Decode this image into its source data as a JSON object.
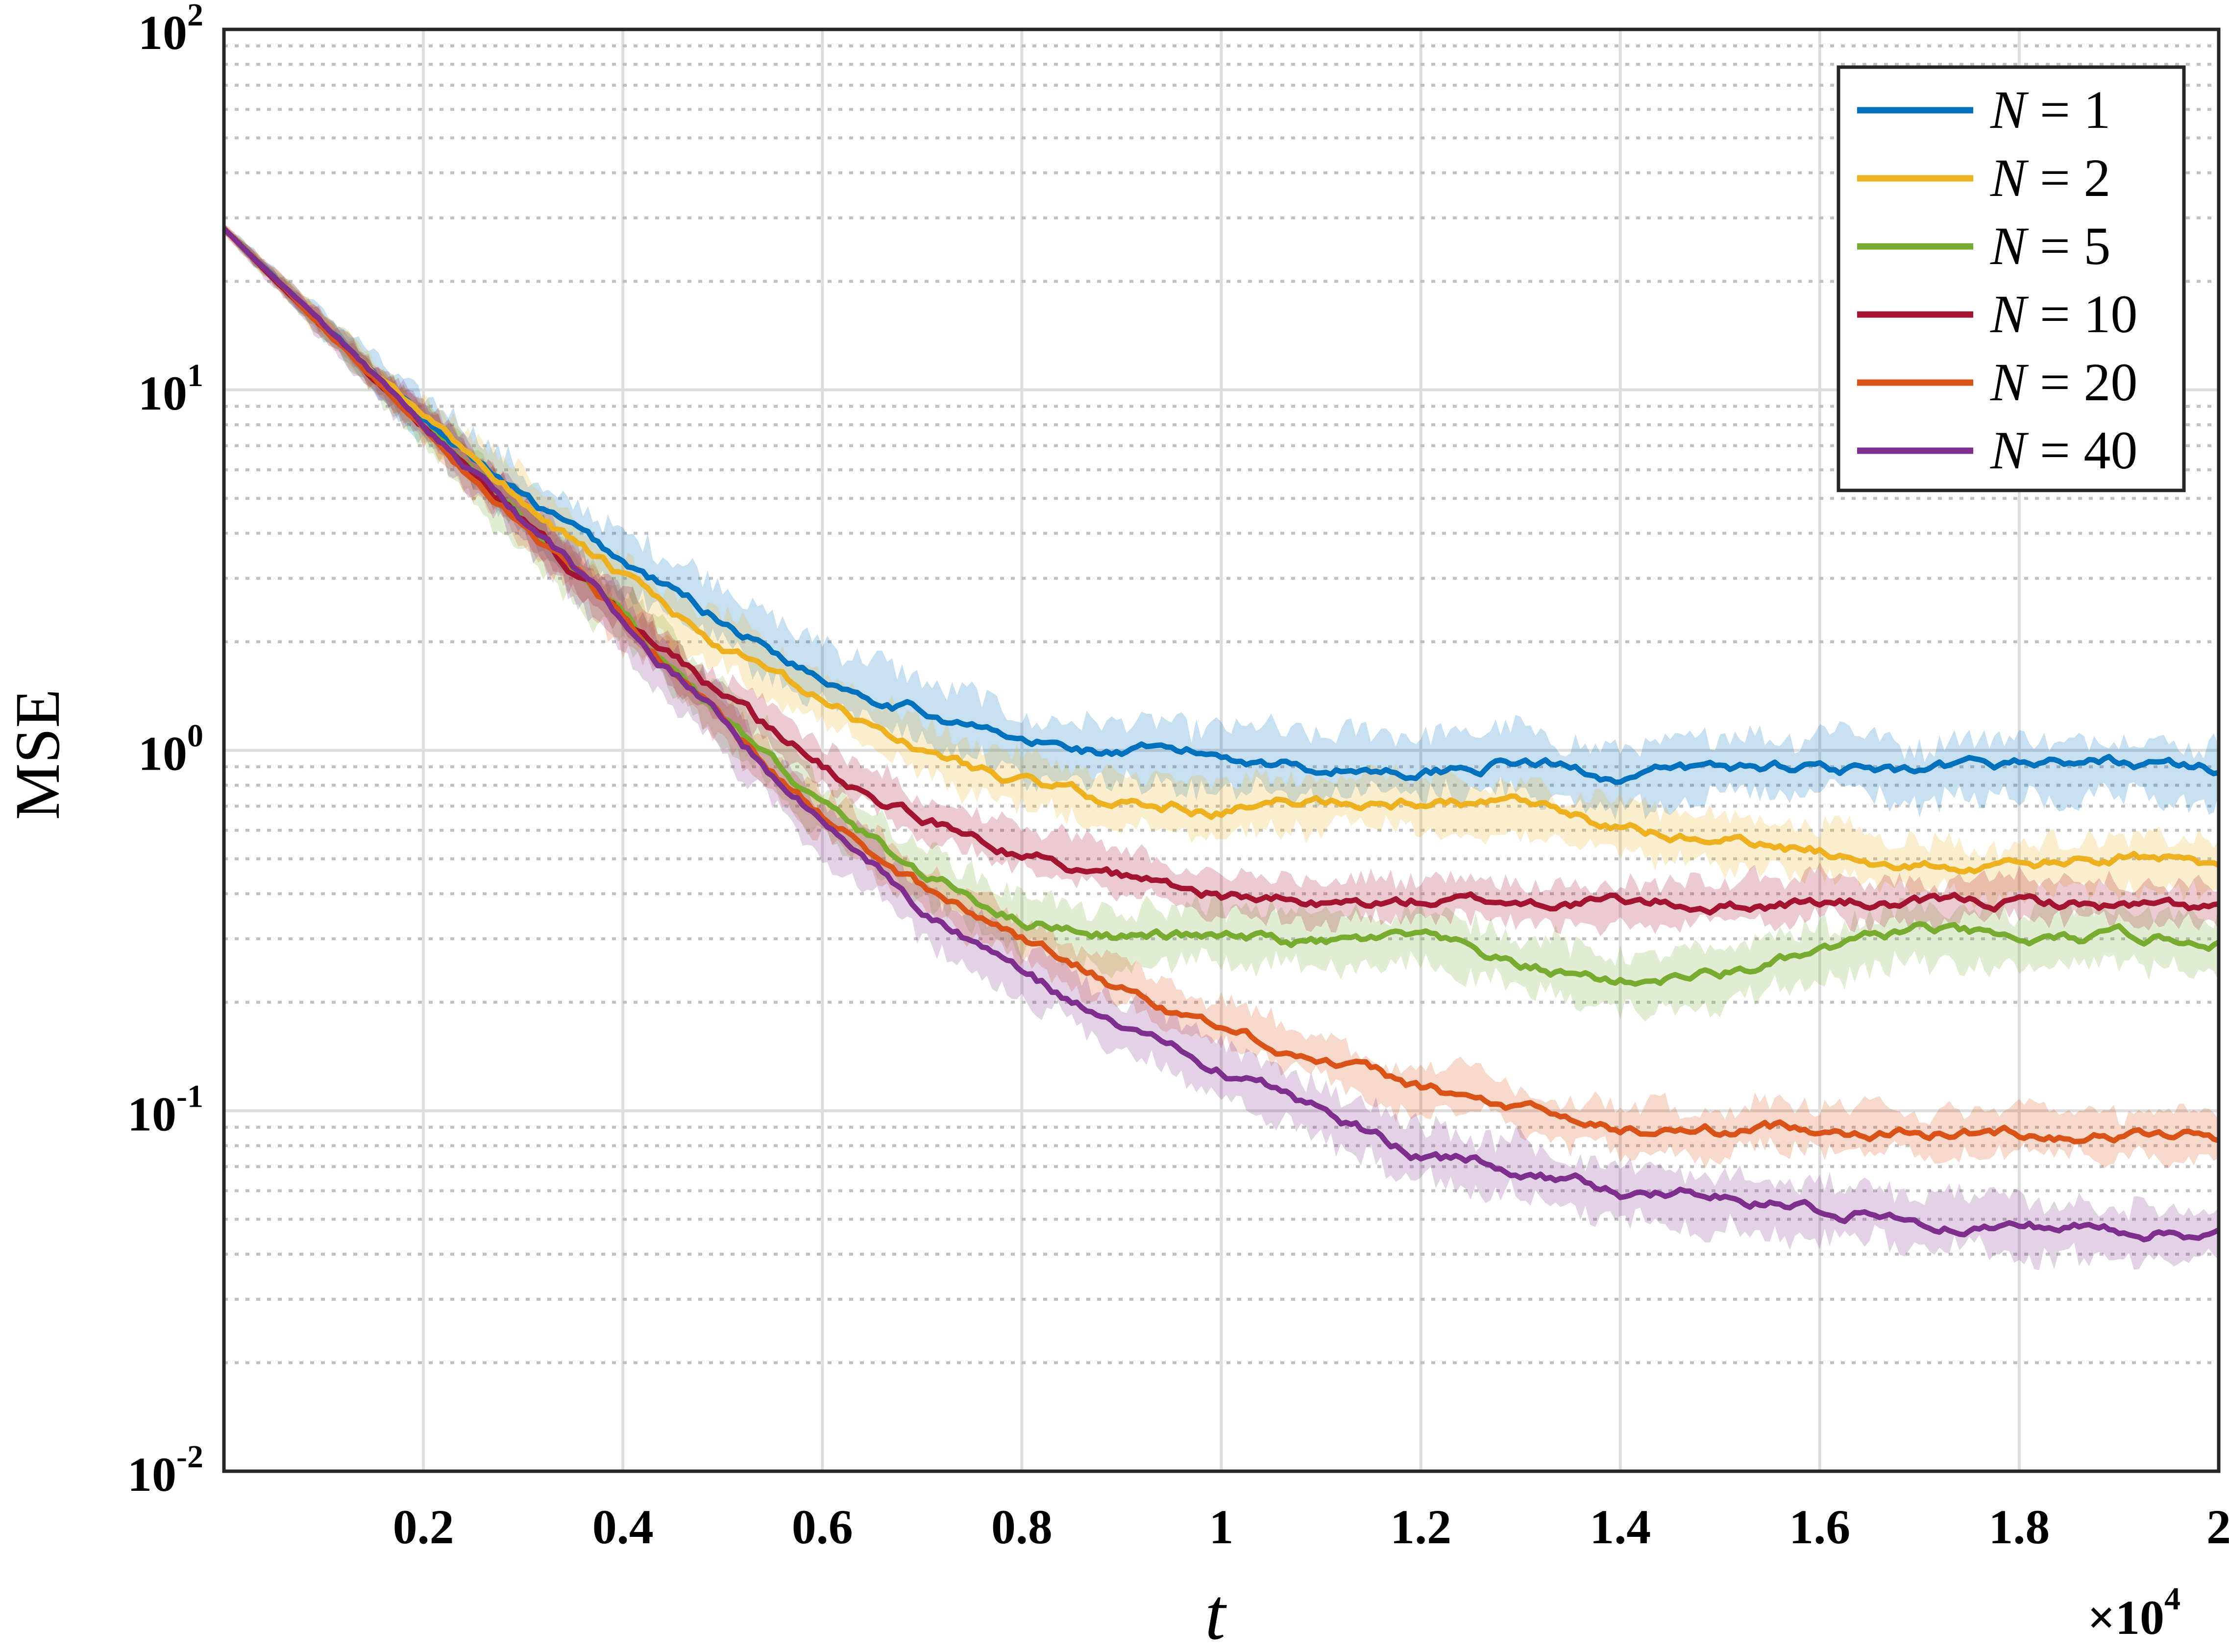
{
  "chart_data": {
    "type": "line",
    "title": "",
    "xlabel": "t",
    "ylabel": "MSE",
    "x_multiplier_label": "×10",
    "x_multiplier_exp": "4",
    "xlim": [
      0,
      20000
    ],
    "ylim": [
      0.01,
      100
    ],
    "yscale": "log",
    "grid": true,
    "minor_grid": true,
    "legend_position": "top-right",
    "x_ticks": [
      {
        "value": 2000,
        "label": "0.2"
      },
      {
        "value": 4000,
        "label": "0.4"
      },
      {
        "value": 6000,
        "label": "0.6"
      },
      {
        "value": 8000,
        "label": "0.8"
      },
      {
        "value": 10000,
        "label": "1"
      },
      {
        "value": 12000,
        "label": "1.2"
      },
      {
        "value": 14000,
        "label": "1.4"
      },
      {
        "value": 16000,
        "label": "1.6"
      },
      {
        "value": 18000,
        "label": "1.8"
      },
      {
        "value": 20000,
        "label": "2"
      }
    ],
    "y_ticks": [
      {
        "value": 0.01,
        "base": "10",
        "exp": "-2"
      },
      {
        "value": 0.1,
        "base": "10",
        "exp": "-1"
      },
      {
        "value": 1,
        "base": "10",
        "exp": "0"
      },
      {
        "value": 10,
        "base": "10",
        "exp": "1"
      },
      {
        "value": 100,
        "base": "10",
        "exp": "2"
      }
    ],
    "x": [
      0,
      1000,
      2000,
      3000,
      4000,
      5000,
      6000,
      7000,
      8000,
      9000,
      10000,
      11000,
      12000,
      13000,
      14000,
      15000,
      16000,
      17000,
      18000,
      19000,
      20000
    ],
    "series": [
      {
        "name": "N = 1",
        "legend_var": "N",
        "legend_eq": "= 1",
        "color": "#0072BD",
        "band_width": 0.16,
        "values": [
          28,
          15,
          8.3,
          5.0,
          3.3,
          2.3,
          1.6,
          1.3,
          1.05,
          0.98,
          0.97,
          0.9,
          0.88,
          0.93,
          0.85,
          0.88,
          0.92,
          0.84,
          0.92,
          0.93,
          0.88
        ]
      },
      {
        "name": "N = 2",
        "legend_var": "N",
        "legend_eq": "= 2",
        "color": "#EDB120",
        "band_width": 0.13,
        "values": [
          28,
          15,
          8.3,
          5.0,
          3.0,
          1.9,
          1.35,
          1.0,
          0.82,
          0.72,
          0.68,
          0.72,
          0.72,
          0.7,
          0.6,
          0.56,
          0.52,
          0.48,
          0.47,
          0.5,
          0.48
        ]
      },
      {
        "name": "N = 5",
        "legend_var": "N",
        "legend_eq": "= 5",
        "color": "#77AC30",
        "band_width": 0.14,
        "values": [
          28,
          15,
          8.0,
          4.3,
          2.3,
          1.25,
          0.7,
          0.45,
          0.34,
          0.31,
          0.3,
          0.29,
          0.3,
          0.25,
          0.23,
          0.24,
          0.27,
          0.32,
          0.29,
          0.3,
          0.3
        ]
      },
      {
        "name": "N = 10",
        "legend_var": "N",
        "legend_eq": "= 10",
        "color": "#A2142F",
        "band_width": 0.1,
        "values": [
          28,
          15,
          8.0,
          4.3,
          2.4,
          1.4,
          0.9,
          0.65,
          0.52,
          0.45,
          0.4,
          0.37,
          0.38,
          0.38,
          0.38,
          0.37,
          0.38,
          0.37,
          0.38,
          0.37,
          0.36
        ]
      },
      {
        "name": "N = 20",
        "legend_var": "N",
        "legend_eq": "= 20",
        "color": "#D95319",
        "band_width": 0.11,
        "values": [
          28,
          15,
          8.0,
          4.3,
          2.3,
          1.2,
          0.65,
          0.42,
          0.3,
          0.22,
          0.17,
          0.14,
          0.115,
          0.1,
          0.088,
          0.088,
          0.09,
          0.087,
          0.087,
          0.086,
          0.085
        ]
      },
      {
        "name": "N = 40",
        "legend_var": "N",
        "legend_eq": "= 40",
        "color": "#7E2F8E",
        "band_width": 0.14,
        "values": [
          28,
          15,
          8.0,
          4.3,
          2.3,
          1.2,
          0.62,
          0.36,
          0.24,
          0.17,
          0.13,
          0.1,
          0.075,
          0.07,
          0.06,
          0.058,
          0.053,
          0.05,
          0.048,
          0.047,
          0.046
        ]
      }
    ]
  }
}
